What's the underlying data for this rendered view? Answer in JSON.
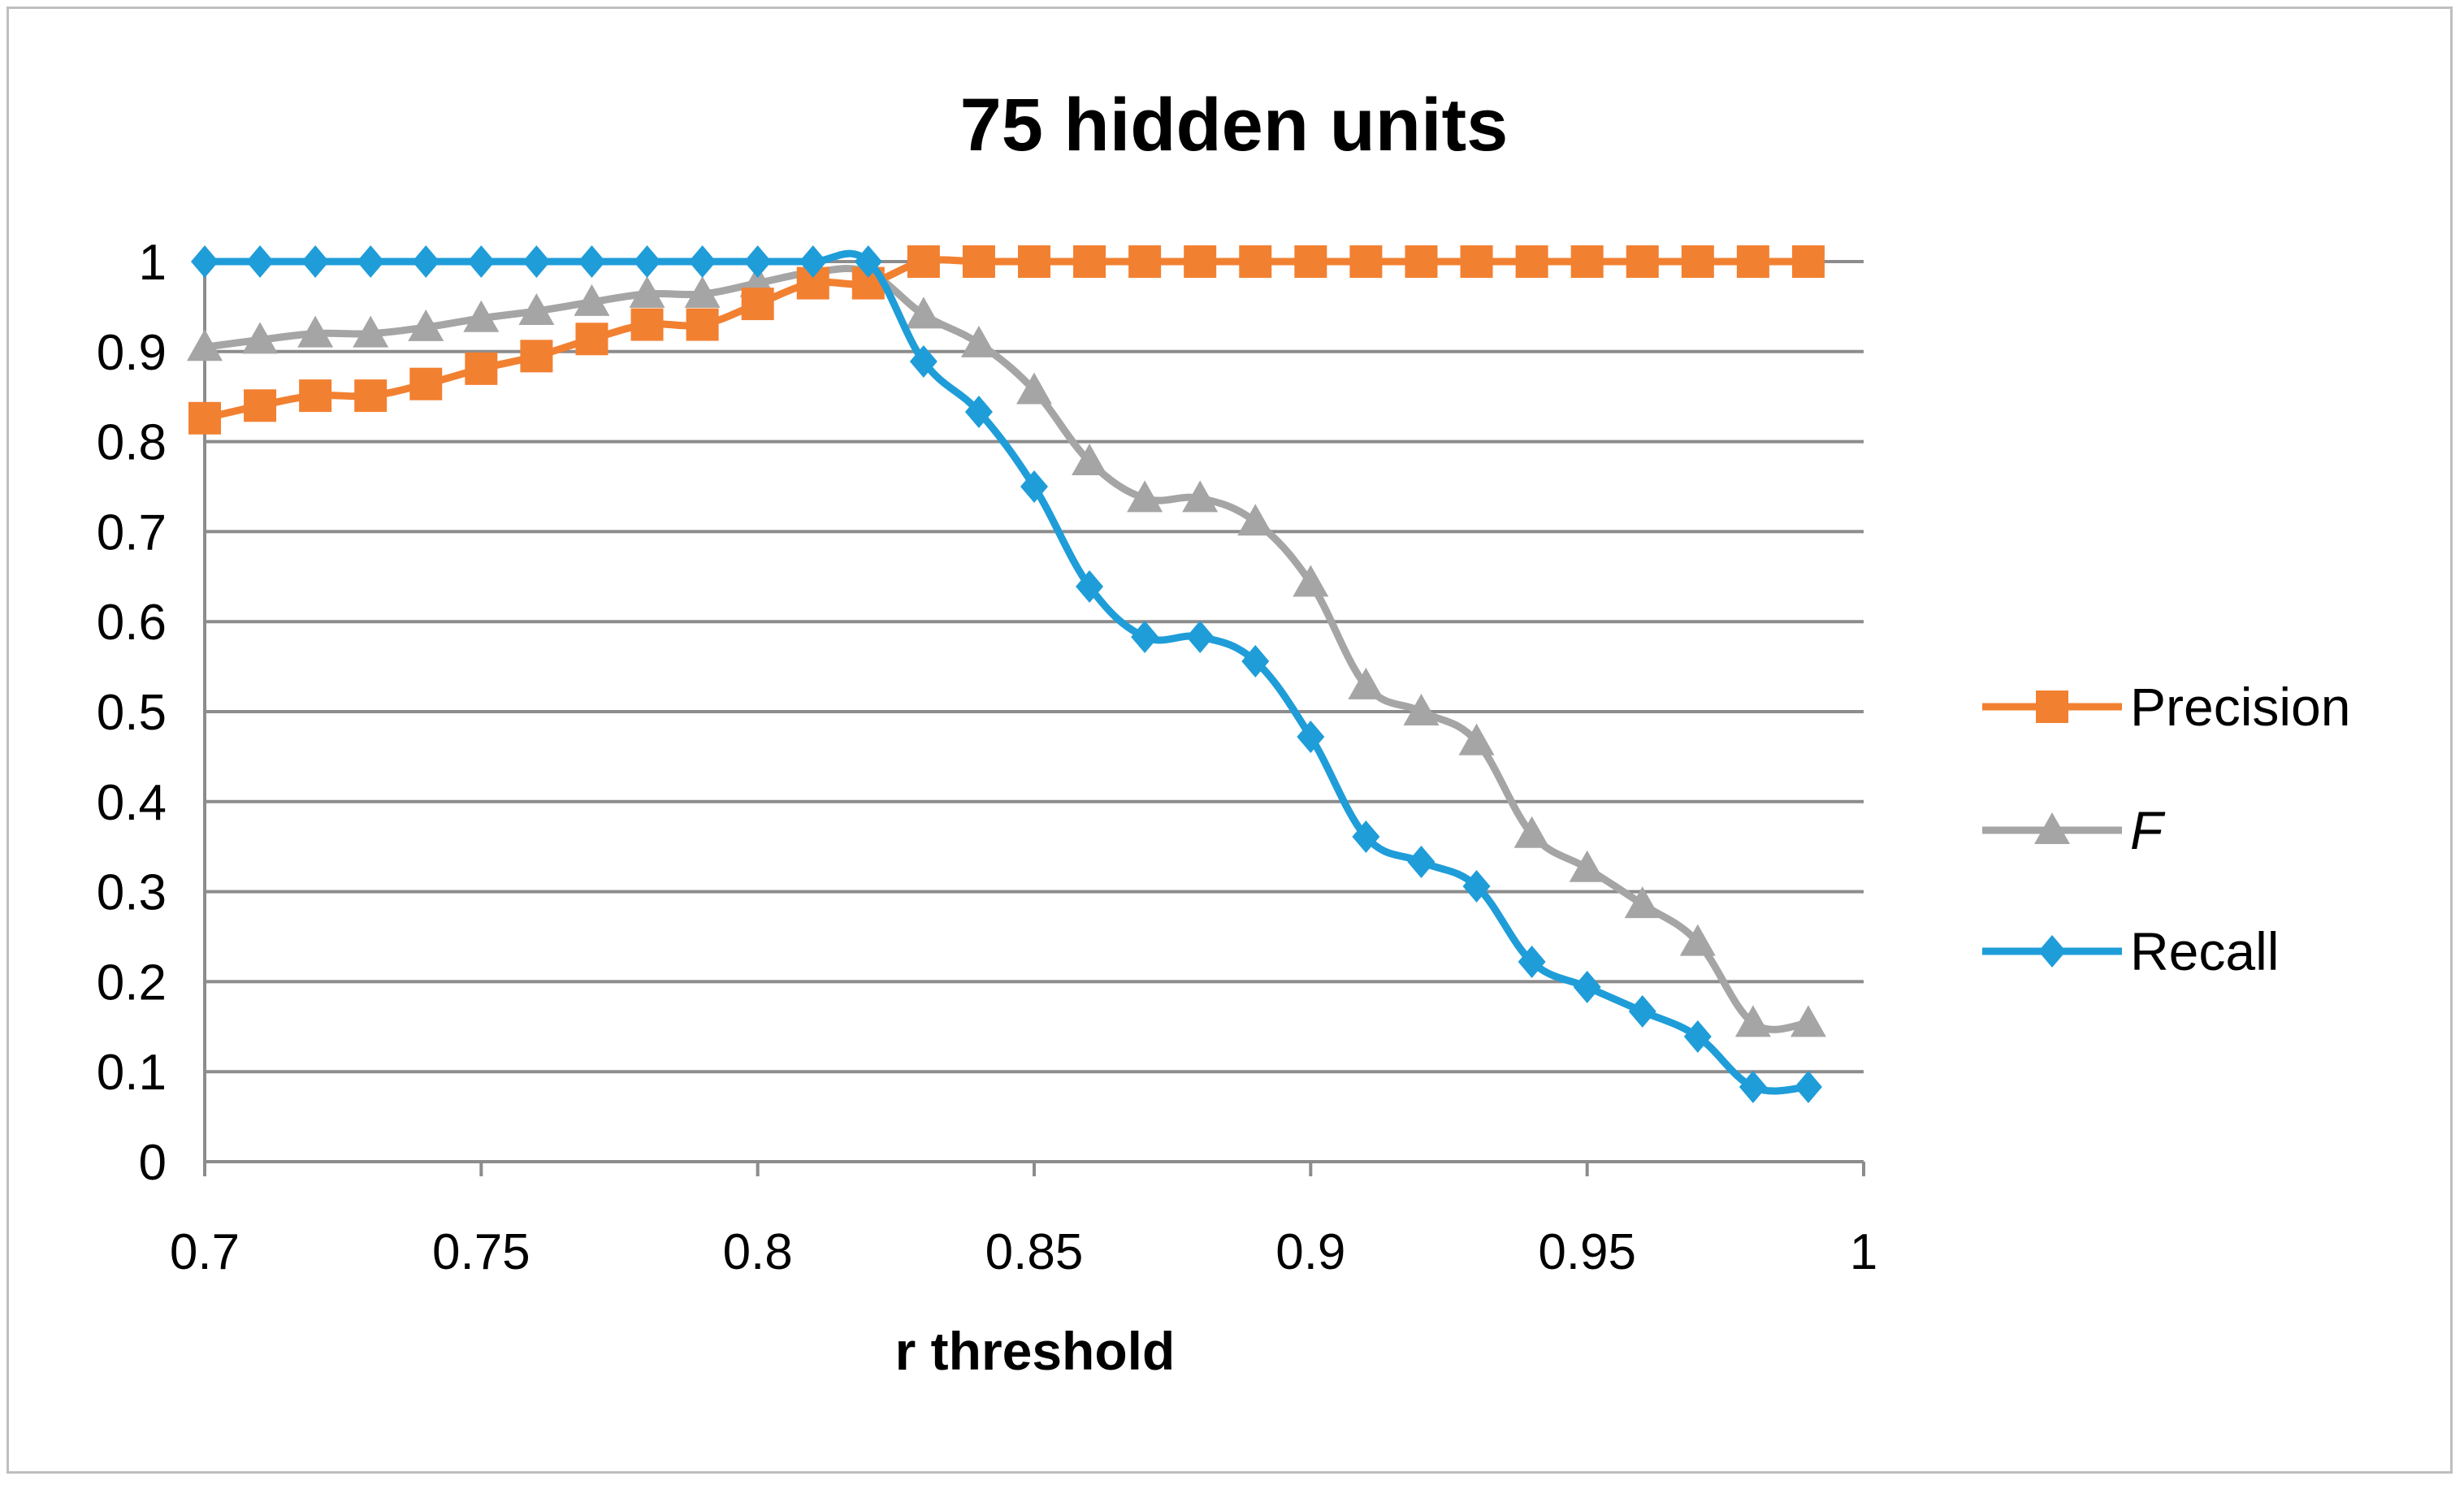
{
  "chart_data": {
    "type": "line",
    "title": "75 hidden units",
    "xlabel": "r threshold",
    "ylabel": "",
    "xlim": [
      0.7,
      1
    ],
    "ylim": [
      0,
      1
    ],
    "x_ticks": [
      "0.7",
      "0.75",
      "0.8",
      "0.85",
      "0.9",
      "0.95",
      "1"
    ],
    "y_ticks": [
      "0",
      "0.1",
      "0.2",
      "0.3",
      "0.4",
      "0.5",
      "0.6",
      "0.7",
      "0.8",
      "0.9",
      "1"
    ],
    "grid": "horizontal",
    "legend_position": "right",
    "x": [
      0.7,
      0.71,
      0.72,
      0.73,
      0.74,
      0.75,
      0.76,
      0.77,
      0.78,
      0.79,
      0.8,
      0.81,
      0.82,
      0.83,
      0.84,
      0.85,
      0.86,
      0.87,
      0.88,
      0.89,
      0.9,
      0.91,
      0.92,
      0.93,
      0.94,
      0.95,
      0.96,
      0.97,
      0.98,
      0.99
    ],
    "series": [
      {
        "name": "Precision",
        "color": "#f28031",
        "marker": "square",
        "values": [
          0.826,
          0.84,
          0.851,
          0.851,
          0.864,
          0.881,
          0.895,
          0.914,
          0.93,
          0.93,
          0.953,
          0.976,
          0.976,
          1,
          1,
          1,
          1,
          1,
          1,
          1,
          1,
          1,
          1,
          1,
          1,
          1,
          1,
          1,
          1,
          1
        ]
      },
      {
        "name": "F",
        "color": "#a5a5a5",
        "marker": "triangle",
        "values": [
          0.905,
          0.913,
          0.92,
          0.92,
          0.927,
          0.937,
          0.945,
          0.955,
          0.964,
          0.964,
          0.976,
          0.988,
          0.988,
          0.941,
          0.909,
          0.857,
          0.778,
          0.737,
          0.737,
          0.711,
          0.643,
          0.529,
          0.5,
          0.467,
          0.364,
          0.326,
          0.286,
          0.244,
          0.154,
          0.154
        ]
      },
      {
        "name": "Recall",
        "color": "#1f9dd9",
        "marker": "diamond",
        "values": [
          1,
          1,
          1,
          1,
          1,
          1,
          1,
          1,
          1,
          1,
          1,
          1,
          1,
          0.889,
          0.833,
          0.75,
          0.639,
          0.583,
          0.583,
          0.556,
          0.472,
          0.361,
          0.333,
          0.306,
          0.222,
          0.194,
          0.167,
          0.139,
          0.083,
          0.083
        ]
      }
    ]
  }
}
